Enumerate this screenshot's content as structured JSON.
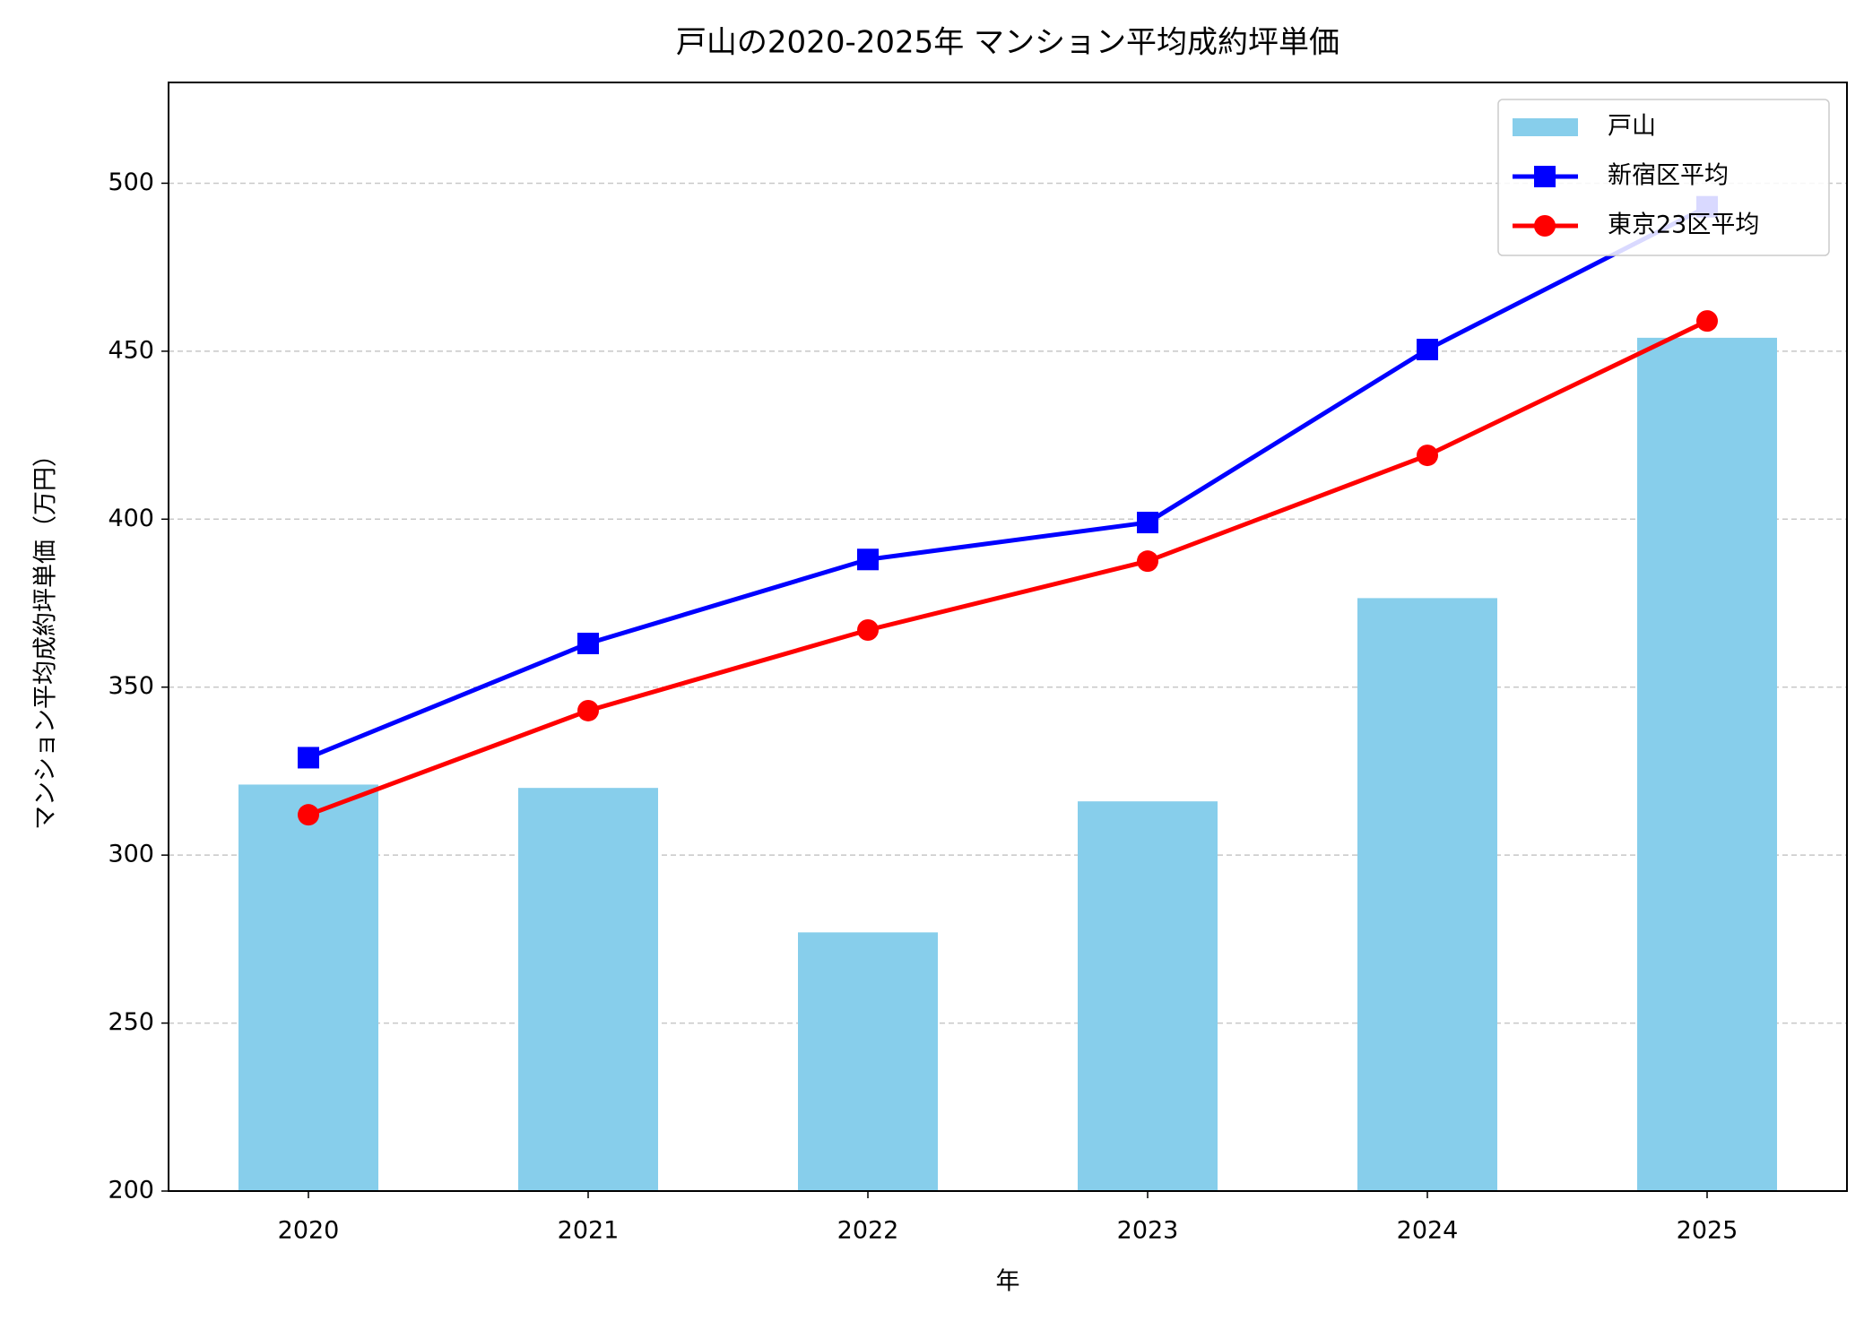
{
  "chart_data": {
    "type": "bar",
    "title": "戸山の2020-2025年 マンション平均成約坪単価",
    "x_label": "年",
    "y_label": "マンション平均成約坪単価（万円）",
    "categories": [
      "2020",
      "2021",
      "2022",
      "2023",
      "2024",
      "2025"
    ],
    "series": [
      {
        "name": "戸山",
        "type": "bar",
        "color": "#87ceeb",
        "values": [
          321,
          320,
          277,
          316,
          376.5,
          454
        ]
      },
      {
        "name": "新宿区平均",
        "type": "line",
        "marker": "square",
        "color": "#0000ff",
        "values": [
          329,
          363,
          388,
          399,
          450.5,
          493
        ]
      },
      {
        "name": "東京23区平均",
        "type": "line",
        "marker": "circle",
        "color": "#ff0000",
        "values": [
          312,
          343,
          367,
          387.5,
          419,
          459
        ]
      }
    ],
    "ylim": [
      200,
      530
    ],
    "yticks": [
      200,
      250,
      300,
      350,
      400,
      450,
      500
    ],
    "grid": true,
    "legend": "upper right"
  }
}
